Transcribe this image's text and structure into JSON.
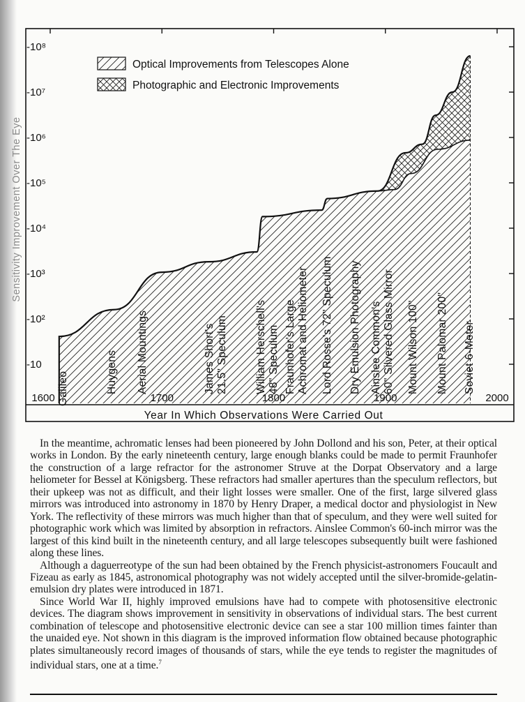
{
  "chart_data": {
    "type": "area",
    "xlabel": "Year In Which Observations Were Carried Out",
    "ylabel": "Sensitivity Improvement Over The Eye",
    "xlim": [
      1600,
      2000
    ],
    "ylim": [
      1,
      100000000
    ],
    "yscale": "log",
    "xticks": [
      1600,
      1700,
      1800,
      1900,
      2000
    ],
    "xtick_labels": [
      "1600",
      "1700",
      "1800",
      "1900",
      "2000"
    ],
    "yticks": [
      10,
      100,
      1000,
      10000,
      100000,
      1000000,
      10000000,
      100000000
    ],
    "ytick_labels": [
      "10",
      "10²",
      "10³",
      "10⁴",
      "10⁵",
      "10⁶",
      "10⁷",
      "10⁸"
    ],
    "legend": {
      "placement": "top-left",
      "entries": [
        {
          "label": "Optical Improvements from Telescopes Alone",
          "pattern": "diagonal-hatch"
        },
        {
          "label": "Photographic and Electronic Improvements",
          "pattern": "cross-hatch"
        }
      ]
    },
    "series": [
      {
        "name": "Optical Improvements from Telescopes Alone",
        "points": [
          [
            1608,
            1
          ],
          [
            1608,
            41
          ],
          [
            1657,
            160
          ],
          [
            1700,
            1070
          ],
          [
            1742,
            1820
          ],
          [
            1785,
            3000
          ],
          [
            1790,
            18000
          ],
          [
            1843,
            25000
          ],
          [
            1848,
            45000
          ],
          [
            1893,
            66000
          ],
          [
            1908,
            71000
          ],
          [
            1923,
            160000
          ],
          [
            1947,
            550000
          ],
          [
            1976,
            870000
          ]
        ]
      },
      {
        "name": "Photographic and Electronic Improvements",
        "points": [
          [
            1893,
            66000
          ],
          [
            1918,
            460000
          ],
          [
            1933,
            710000
          ],
          [
            1945,
            3100000
          ],
          [
            1960,
            10000000
          ],
          [
            1976,
            63000000
          ]
        ]
      }
    ],
    "annotations": [
      [
        "Galileo"
      ],
      [
        "Huygens"
      ],
      [
        "Aerial Mountings"
      ],
      [
        "James Short's",
        "21.5\" Speculum"
      ],
      [
        "William Herschell's",
        "48\" Speculum"
      ],
      [
        "Fraunhofer's Large",
        "Achromat and Heliometer"
      ],
      [
        "Lord Rosse's 72\" Speculum"
      ],
      [
        "Dry Emulsion Photography"
      ],
      [
        "Ainslee Common's",
        "60\" Silvered Glass Mirror"
      ],
      [
        "Mount Wilson 100\""
      ],
      [
        "Mount Palomar 200\""
      ],
      [
        "Soviet 6-Meter"
      ]
    ],
    "grid": false
  },
  "text": {
    "paragraphs": [
      "In the meantime, achromatic lenses had been pioneered by John Dollond and his son, Peter, at their optical works in London. By the early nineteenth century, large enough blanks could be made to permit Fraunhofer the construction of a large refractor for the astronomer Struve at the Dorpat Observatory and a large heliometer for Bessel at Königsberg. These refractors had smaller apertures than the speculum reflectors, but their upkeep was not as difficult, and their light losses were smaller. One of the first, large silvered glass mirrors was introduced into astronomy in 1870 by Henry Draper, a medical doctor and physiologist in New York. The reflectivity of these mirrors was much higher than that of speculum, and they were well suited for photographic work which was limited by absorption in refractors. Ainslee Common's 60-inch mirror was the largest of this kind built in the nineteenth century, and all large telescopes subsequently built were fashioned along these lines.",
      "Although a daguerreotype of the sun had been obtained by the French physicist-astronomers Foucault and Fizeau as early as 1845, astronomical photography was not widely accepted until the silver-bromide-gelatin-emulsion dry plates were introduced in 1871.",
      "Since World War II, highly improved emulsions have had to compete with photosensitive electronic devices. The diagram shows improvement in sensitivity in observations of individual stars. The best current combination of telescope and photosensitive electronic device can see a star 100 million times fainter than the unaided eye. Not shown in this diagram is the improved information flow obtained because photographic plates simultaneously record images of thousands of stars, while the eye tends to register the magnitudes of individual stars, one at a time."
    ],
    "footnote_marker": "7"
  }
}
